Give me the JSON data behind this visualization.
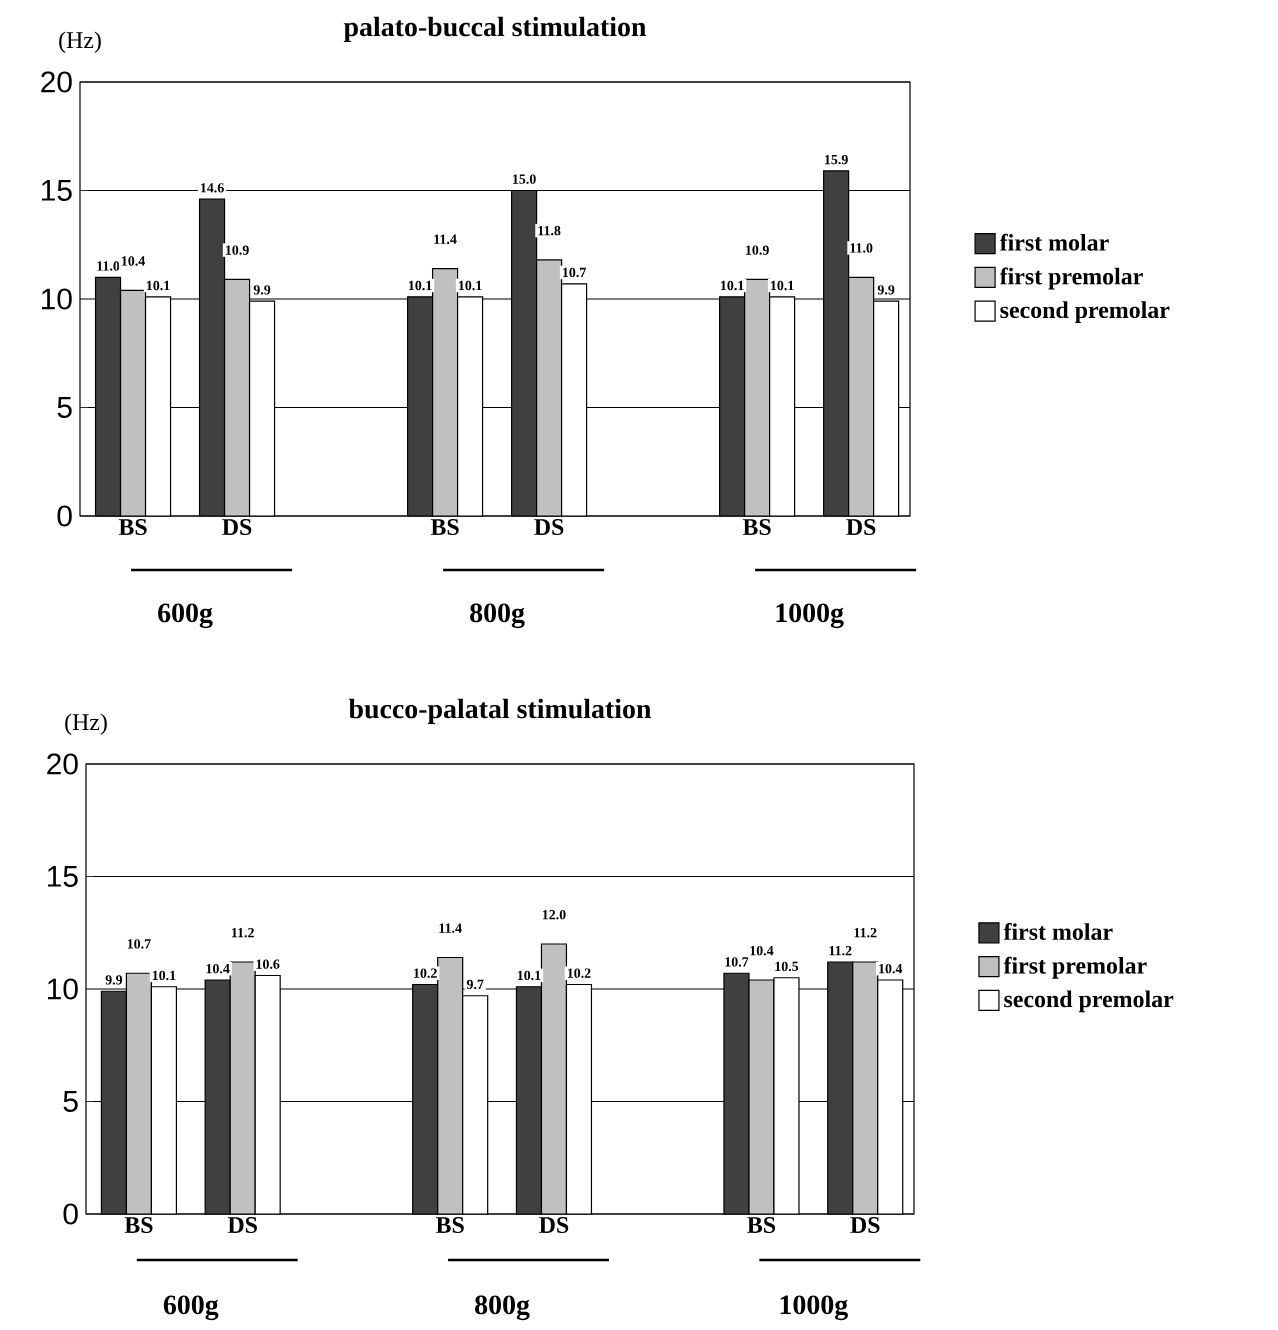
{
  "chart_data": [
    {
      "type": "bar",
      "title": "palato-buccal  stimulation",
      "ylabel": "(Hz)",
      "categories": [
        "BS",
        "DS",
        null,
        "BS",
        "DS",
        null,
        "BS",
        "DS"
      ],
      "series": [
        {
          "name": "first molar",
          "color": "#404040",
          "values": [
            11.0,
            14.6,
            null,
            10.1,
            15.0,
            null,
            10.1,
            15.9
          ],
          "value_labels": [
            "11.0",
            "14.6",
            null,
            "10.1",
            "15.0",
            null,
            "10.1",
            "15.9"
          ]
        },
        {
          "name": "first premolar",
          "color": "#c0c0c0",
          "values": [
            10.4,
            10.9,
            null,
            11.4,
            11.8,
            null,
            10.9,
            11.0
          ],
          "value_labels": [
            "10.4",
            "10.9",
            null,
            "11.4",
            "11.8",
            null,
            "10.9",
            "11.0"
          ]
        },
        {
          "name": "second premolar",
          "color": "#ffffff",
          "values": [
            10.1,
            9.9,
            null,
            10.1,
            10.7,
            null,
            10.1,
            9.9
          ],
          "value_labels": [
            "10.1",
            "9.9",
            null,
            "10.1",
            "10.7",
            null,
            "10.1",
            "9.9"
          ]
        }
      ],
      "ylim": [
        0,
        20
      ],
      "yticks": [
        0,
        5,
        10,
        15,
        20
      ],
      "grid": "y",
      "legend": "right",
      "annotations": [
        "600g",
        "800g",
        "1000g"
      ]
    },
    {
      "type": "bar",
      "title": "bucco-palatal  stimulation",
      "ylabel": "(Hz)",
      "categories": [
        "BS",
        "DS",
        null,
        "BS",
        "DS",
        null,
        "BS",
        "DS"
      ],
      "series": [
        {
          "name": "first molar",
          "color": "#404040",
          "values": [
            9.9,
            10.4,
            null,
            10.2,
            10.1,
            null,
            10.7,
            11.2
          ],
          "value_labels": [
            "9.9",
            "10.4",
            null,
            "10.2",
            "10.1",
            null,
            "10.7",
            "11.2"
          ]
        },
        {
          "name": "first premolar",
          "color": "#c0c0c0",
          "values": [
            10.7,
            11.2,
            null,
            11.4,
            12.0,
            null,
            10.4,
            11.2
          ],
          "value_labels": [
            "10.7",
            "11.2",
            null,
            "11.4",
            "12.0",
            null,
            "10.4",
            "11.2"
          ]
        },
        {
          "name": "second premolar",
          "color": "#ffffff",
          "values": [
            10.1,
            10.6,
            null,
            9.7,
            10.2,
            null,
            10.5,
            10.4
          ],
          "value_labels": [
            "10.1",
            "10.6",
            null,
            "9.7",
            "10.2",
            null,
            "10.5",
            "10.4"
          ]
        }
      ],
      "ylim": [
        0,
        20
      ],
      "yticks": [
        0,
        5,
        10,
        15,
        20
      ],
      "grid": "y",
      "legend": "right",
      "annotations": [
        "600g",
        "800g",
        "1000g"
      ]
    }
  ]
}
